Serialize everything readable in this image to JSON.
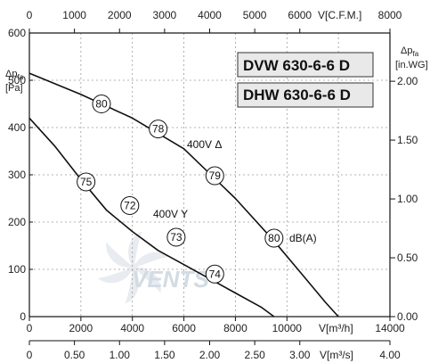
{
  "chart_data": {
    "type": "line",
    "models": [
      "DVW 630-6-6 D",
      "DHW 630-6-6 D"
    ],
    "watermark": "VENTS",
    "axes": {
      "bottom": {
        "label": "V[m³/h]",
        "min": 0,
        "max": 14000,
        "ticks": [
          "0",
          "2000",
          "4000",
          "6000",
          "8000",
          "10000",
          "14000"
        ]
      },
      "top": {
        "label": "V[C.F.M.]",
        "min": 0,
        "max": 8000,
        "ticks": [
          "0",
          "1000",
          "2000",
          "3000",
          "4000",
          "5000",
          "6000",
          "8000"
        ]
      },
      "bottom2": {
        "label": "V[m³/s]",
        "min": 0,
        "max": 4.0,
        "ticks": [
          "0",
          "0.50",
          "1.00",
          "1.50",
          "2.00",
          "2.50",
          "3.00",
          "4.00"
        ]
      },
      "left": {
        "label": "Δp",
        "label_sub": "fa",
        "unit": "[Pa]",
        "min": 0,
        "max": 600,
        "ticks": [
          "0",
          "100",
          "200",
          "300",
          "400",
          "500",
          "600"
        ]
      },
      "right": {
        "label": "Δp",
        "label_sub": "fa",
        "unit": "[in.WG]",
        "min": 0,
        "max": 2.41,
        "ticks": [
          "0.00",
          "0.50",
          "1.00",
          "1.50",
          "2.00"
        ]
      }
    },
    "grid": true,
    "series": [
      {
        "name": "400V Δ",
        "x": [
          0,
          2000,
          4000,
          6000,
          8000,
          9500,
          10500,
          11500,
          12000
        ],
        "y": [
          515,
          470,
          420,
          355,
          250,
          160,
          95,
          30,
          0
        ]
      },
      {
        "name": "400V Y",
        "x": [
          0,
          1000,
          2000,
          3000,
          4000,
          5000,
          6000,
          7000,
          8000,
          9000,
          9500
        ],
        "y": [
          420,
          360,
          290,
          225,
          180,
          140,
          110,
          80,
          50,
          20,
          0
        ]
      }
    ],
    "noise_labels": [
      {
        "value": "80",
        "x": 2800,
        "y": 450
      },
      {
        "value": "78",
        "x": 5000,
        "y": 397
      },
      {
        "value": "79",
        "x": 7200,
        "y": 298
      },
      {
        "value": "80",
        "x": 9500,
        "y": 166
      },
      {
        "value": "75",
        "x": 2200,
        "y": 285
      },
      {
        "value": "72",
        "x": 3900,
        "y": 235
      },
      {
        "value": "73",
        "x": 5700,
        "y": 168
      },
      {
        "value": "74",
        "x": 7200,
        "y": 90
      }
    ],
    "noise_unit": "dB(A)"
  }
}
